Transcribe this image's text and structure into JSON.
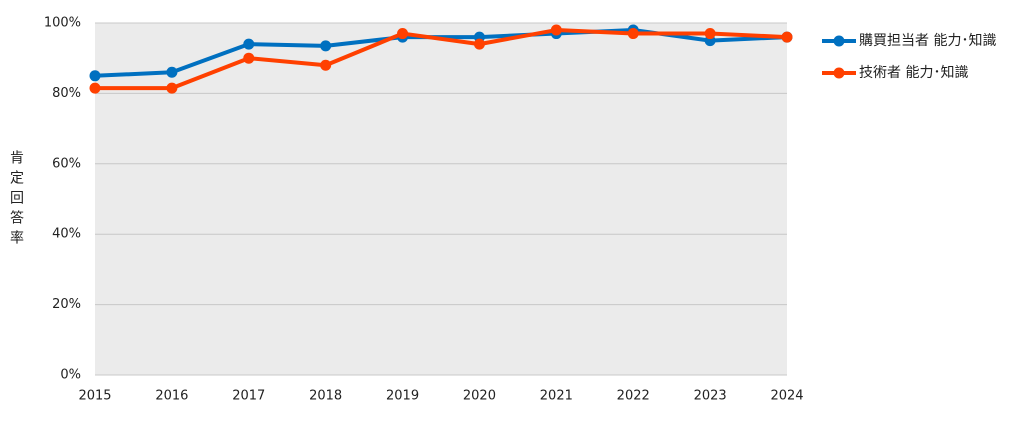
{
  "chart_data": {
    "type": "line",
    "y_label": "肯定回答率",
    "x": [
      2015,
      2016,
      2017,
      2018,
      2019,
      2020,
      2021,
      2022,
      2023,
      2024
    ],
    "xlim": [
      2015,
      2024
    ],
    "xticks": [
      2015,
      2016,
      2017,
      2018,
      2019,
      2020,
      2021,
      2022,
      2023,
      2024
    ],
    "ylim": [
      0,
      100
    ],
    "yticks": [
      {
        "value": 0,
        "label": "0%"
      },
      {
        "value": 20,
        "label": "20%"
      },
      {
        "value": 40,
        "label": "40%"
      },
      {
        "value": 60,
        "label": "60%"
      },
      {
        "value": 80,
        "label": "80%"
      },
      {
        "value": 100,
        "label": "100%"
      }
    ],
    "grid": true,
    "legend": "right",
    "series": [
      {
        "name": "購買担当者 能力･知識",
        "color": "#0070c0",
        "values": [
          85,
          86,
          94,
          93.5,
          96,
          96,
          97,
          98,
          95,
          96
        ]
      },
      {
        "name": "技術者 能力･知識",
        "color": "#ff4000",
        "values": [
          81.5,
          81.5,
          90,
          88,
          97,
          94,
          98,
          97,
          97,
          96
        ]
      }
    ]
  }
}
